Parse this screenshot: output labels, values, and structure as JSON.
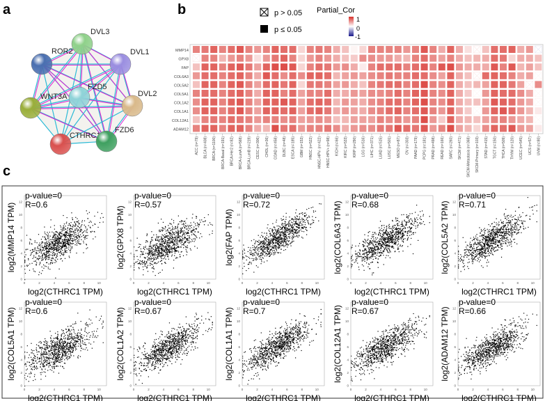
{
  "panel_labels": {
    "a": "a",
    "b": "b",
    "c": "c"
  },
  "network": {
    "nodes": [
      {
        "id": "DVL3",
        "color": "#8fd18a"
      },
      {
        "id": "ROR2",
        "color": "#4a6fb0"
      },
      {
        "id": "DVL1",
        "color": "#9a8ee0"
      },
      {
        "id": "FZD5",
        "color": "#8fd3d8"
      },
      {
        "id": "WNT3A",
        "color": "#9aae3a"
      },
      {
        "id": "DVL2",
        "color": "#d9b98a"
      },
      {
        "id": "CTHRC1",
        "color": "#d9504e"
      },
      {
        "id": "FZD6",
        "color": "#3fa060"
      }
    ],
    "edge_colors": [
      "#2bbad6",
      "#e020d0"
    ]
  },
  "chart_data": [
    {
      "type": "heatmap",
      "title": "Partial_Cor",
      "legend": {
        "not_significant": "p > 0.05",
        "significant": "p ≤ 0.05",
        "scale_ticks": [
          "1",
          "0",
          "-1"
        ],
        "colors": {
          "high": "#d7302a",
          "mid": "#ffffff",
          "low": "#1a1a8c"
        }
      },
      "rows": [
        "MMP14",
        "GPX8",
        "FAP",
        "COL6A3",
        "COL5A2",
        "COL5A1",
        "COL1A2",
        "COL1A1",
        "COL12A1",
        "ADAM12"
      ],
      "columns": [
        "ACC (n=79)",
        "BLCA (n=408)",
        "BRCA (n=1100)",
        "BRCA-Basal (n=191)",
        "BRCA-Her2 (n=82)",
        "BRCA-LumA (n=568)",
        "BRCA-LumB (n=219)",
        "CESC (n=306)",
        "CHOL (n=36)",
        "COAD (n=458)",
        "DLBC (n=48)",
        "ESCA (n=185)",
        "GBM (n=153)",
        "HNSC (n=522)",
        "HNSC-HPV- (n=422)",
        "HNSC-HPV+ (n=98)",
        "KICH (n=66)",
        "KIRC (n=533)",
        "KIRP (n=290)",
        "LGG (n=516)",
        "LIHC (n=371)",
        "LUAD (n=515)",
        "LUSC (n=501)",
        "MESO (n=87)",
        "OV (n=303)",
        "PAAD (n=179)",
        "PCPG (n=181)",
        "PRAD (n=498)",
        "READ (n=166)",
        "SARC (n=260)",
        "SKCM (n=471)",
        "SKCM-Metastasis (n=368)",
        "SKCM-Primary (n=103)",
        "STAD (n=415)",
        "TGCT (n=150)",
        "THCA (n=509)",
        "THYM (n=120)",
        "UCEC (n=545)",
        "UCS (n=57)",
        "UVM (n=80)"
      ],
      "values": [
        [
          0.6,
          0.65,
          0.75,
          0.6,
          0.7,
          0.8,
          0.6,
          0.5,
          0.6,
          0.75,
          0.7,
          0.7,
          0.2,
          0.6,
          0.65,
          0.6,
          0.4,
          0.3,
          0.05,
          0.2,
          0.6,
          0.6,
          0.6,
          0.6,
          0.5,
          0.6,
          0.8,
          0.6,
          0.4,
          0.75,
          0.4,
          0.15,
          0.1,
          0.3,
          0.7,
          0.7,
          0.75,
          0.4,
          0.5,
          -0.1
        ],
        [
          0.1,
          0.6,
          0.6,
          0.35,
          0.5,
          0.6,
          0.5,
          0.15,
          0.5,
          0.65,
          0.75,
          0.6,
          0.2,
          0.5,
          0.6,
          0.5,
          0.4,
          0.3,
          0.25,
          0.55,
          0.55,
          0.5,
          0.5,
          0.4,
          0.35,
          0.6,
          0.7,
          0.55,
          0.45,
          0.6,
          0.4,
          0.3,
          0.35,
          0.4,
          0.7,
          0.65,
          0.2,
          0.4,
          0.4,
          0.3
        ],
        [
          0.3,
          0.75,
          0.75,
          0.6,
          0.75,
          0.8,
          0.65,
          0.45,
          0.75,
          0.85,
          0.85,
          0.8,
          0.2,
          0.6,
          0.7,
          0.65,
          0.5,
          0.55,
          0.4,
          0.1,
          0.6,
          0.7,
          0.7,
          0.7,
          0.6,
          0.7,
          0.8,
          0.6,
          0.8,
          0.85,
          0.5,
          0.4,
          0.4,
          0.4,
          0.8,
          0.6,
          0.8,
          0.35,
          0.45,
          0.3
        ],
        [
          0.5,
          0.7,
          0.7,
          0.6,
          0.7,
          0.75,
          0.6,
          0.4,
          0.8,
          0.7,
          0.55,
          0.7,
          0.55,
          0.75,
          0.75,
          0.7,
          0.35,
          0.45,
          0.5,
          0.45,
          0.55,
          0.6,
          0.65,
          0.6,
          0.6,
          0.7,
          0.7,
          0.55,
          0.45,
          0.75,
          0.4,
          0.3,
          0.1,
          0.7,
          0.75,
          0.7,
          0.6,
          0.4,
          0.45,
          0.05
        ],
        [
          0.3,
          0.75,
          0.75,
          0.6,
          0.75,
          0.8,
          0.6,
          0.45,
          0.7,
          0.75,
          0.65,
          0.75,
          0.2,
          0.65,
          0.65,
          0.6,
          0.45,
          0.5,
          0.4,
          0.3,
          0.6,
          0.65,
          0.7,
          0.7,
          0.6,
          0.7,
          0.85,
          0.6,
          0.55,
          0.75,
          0.4,
          0.3,
          0.35,
          0.45,
          0.75,
          0.75,
          0.65,
          0.45,
          0.1,
          0.55
        ],
        [
          0.6,
          0.7,
          0.7,
          0.6,
          0.7,
          0.75,
          0.6,
          0.4,
          0.75,
          0.75,
          0.6,
          0.7,
          0.45,
          0.6,
          0.6,
          0.7,
          0.4,
          0.4,
          0.5,
          0.45,
          0.55,
          0.55,
          0.6,
          0.7,
          0.6,
          0.75,
          0.8,
          0.6,
          0.55,
          0.75,
          0.4,
          0.25,
          0.05,
          0.5,
          0.75,
          0.7,
          0.7,
          0.55,
          0.4,
          0.05
        ],
        [
          0.55,
          0.75,
          0.75,
          0.6,
          0.75,
          0.8,
          0.6,
          0.45,
          0.75,
          0.75,
          0.8,
          0.75,
          0.45,
          0.7,
          0.75,
          0.7,
          0.35,
          0.5,
          0.45,
          0.4,
          0.55,
          0.6,
          0.7,
          0.7,
          0.6,
          0.75,
          0.85,
          0.6,
          0.55,
          0.75,
          0.4,
          0.3,
          0.3,
          0.45,
          0.8,
          0.75,
          0.7,
          0.5,
          0.4,
          0.05
        ],
        [
          0.55,
          0.75,
          0.75,
          0.6,
          0.7,
          0.8,
          0.6,
          0.45,
          0.75,
          0.75,
          0.7,
          0.75,
          0.45,
          0.7,
          0.75,
          0.65,
          0.4,
          0.5,
          0.45,
          0.4,
          0.55,
          0.6,
          0.7,
          0.75,
          0.6,
          0.7,
          0.8,
          0.6,
          0.5,
          0.75,
          0.4,
          0.25,
          0.05,
          0.5,
          0.75,
          0.8,
          0.7,
          0.5,
          0.35,
          0.1
        ],
        [
          0.3,
          0.6,
          0.65,
          0.6,
          0.7,
          0.65,
          0.6,
          0.5,
          0.6,
          0.6,
          0.55,
          0.6,
          0.45,
          0.5,
          0.55,
          0.5,
          0.3,
          0.35,
          0.45,
          0.45,
          0.45,
          0.6,
          0.55,
          0.6,
          0.5,
          0.6,
          0.85,
          0.5,
          0.25,
          0.75,
          0.4,
          0.35,
          0.3,
          0.45,
          0.6,
          0.6,
          0.5,
          0.4,
          0.35,
          0.05
        ],
        [
          0.6,
          0.75,
          0.75,
          0.6,
          0.75,
          0.75,
          0.6,
          0.4,
          0.35,
          0.85,
          0.65,
          0.7,
          0.5,
          0.6,
          0.6,
          0.65,
          0.55,
          0.4,
          0.5,
          0.55,
          0.55,
          0.65,
          0.65,
          0.8,
          0.7,
          0.65,
          0.8,
          0.5,
          0.6,
          0.85,
          0.45,
          0.35,
          0.2,
          0.55,
          0.75,
          0.7,
          0.8,
          0.5,
          0.45,
          0.1
        ]
      ],
      "crossed": [
        [
          0,
          32
        ],
        [
          0,
          39
        ],
        [
          1,
          0
        ],
        [
          3,
          32
        ],
        [
          3,
          39
        ],
        [
          4,
          38
        ],
        [
          5,
          32
        ],
        [
          5,
          39
        ],
        [
          6,
          39
        ],
        [
          7,
          32
        ],
        [
          8,
          39
        ]
      ]
    },
    {
      "type": "scatter",
      "xlabel": "log2(CTHRC1 TPM)",
      "xlim": [
        0,
        11
      ],
      "ylim": [
        0,
        13
      ],
      "xticks": [
        0,
        2,
        4,
        6,
        8,
        10
      ],
      "yticks": [
        0,
        2,
        4,
        6,
        8,
        10,
        12
      ],
      "panels": [
        {
          "gene": "MMP14",
          "ylabel": "log2(MMP14 TPM)",
          "pvalue": "p-value=0",
          "r": "R=0.6",
          "R": 0.6
        },
        {
          "gene": "GPX8",
          "ylabel": "log2(GPX8 TPM)",
          "pvalue": "p-value=0",
          "r": "R=0.57",
          "R": 0.57
        },
        {
          "gene": "FAP",
          "ylabel": "log2(FAP TPM)",
          "pvalue": "p-value=0",
          "r": "R=0.72",
          "R": 0.72
        },
        {
          "gene": "COL6A3",
          "ylabel": "log2(COL6A3 TPM)",
          "pvalue": "p-value=0",
          "r": "R=0.68",
          "R": 0.68
        },
        {
          "gene": "COL5A2",
          "ylabel": "log2(COL5A2 TPM)",
          "pvalue": "p-value=0",
          "r": "R=0.71",
          "R": 0.71
        },
        {
          "gene": "COL5A1",
          "ylabel": "log2(COL5A1 TPM)",
          "pvalue": "p-value=0",
          "r": "R=0.6",
          "R": 0.6
        },
        {
          "gene": "COL1A2",
          "ylabel": "log2(COL1A2 TPM)",
          "pvalue": "p-value=0",
          "r": "R=0.67",
          "R": 0.67
        },
        {
          "gene": "COL1A1",
          "ylabel": "log2(COL1A1 TPM)",
          "pvalue": "p-value=0",
          "r": "R=0.7",
          "R": 0.7
        },
        {
          "gene": "COL12A1",
          "ylabel": "log2(COL12A1 TPM)",
          "pvalue": "p-value=0",
          "r": "R=0.67",
          "R": 0.67
        },
        {
          "gene": "ADAM12",
          "ylabel": "log2(ADAM12 TPM)",
          "pvalue": "p-value=0",
          "r": "R=0.66",
          "R": 0.66
        }
      ]
    }
  ]
}
